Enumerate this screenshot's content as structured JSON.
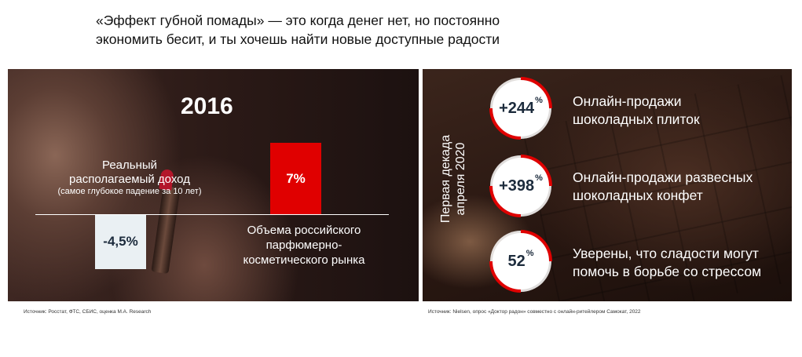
{
  "headline": {
    "line1": "«Эффект губной помады» — это когда денег нет, но постоянно",
    "line2": "экономить бесит, и ты хочешь найти новые доступные радости"
  },
  "chart_data": {
    "type": "bar",
    "title": "2016",
    "categories": [
      "Реальный располагаемый доход (самое глубокое падение за 10 лет)",
      "Объема российского парфюмерно-косметического рынка"
    ],
    "values": [
      -4.5,
      7
    ],
    "value_labels": [
      "-4,5%",
      "7%"
    ],
    "colors": [
      "#eaf0f3",
      "#e00000"
    ],
    "ylim": [
      -5,
      8
    ]
  },
  "left": {
    "year": "2016",
    "income_label_line1": "Реальный",
    "income_label_line2": "располагаемый доход",
    "income_note": "(самое глубокое падение за 10 лет)",
    "market_line1": "Объема российского",
    "market_line2": "парфюмерно-",
    "market_line3": "косметического рынка",
    "source": "Источник: Росстат, ФТС, СБИС, оценка M.A. Research"
  },
  "right": {
    "period_line1": "Первая декада",
    "period_line2": "апреля 2020",
    "stats": [
      {
        "prefix": "+",
        "value": "244",
        "unit": "%",
        "line1": "Онлайн-продажи",
        "line2": "шоколадных плиток"
      },
      {
        "prefix": "+",
        "value": "398",
        "unit": "%",
        "line1": "Онлайн-продажи развесных",
        "line2": "шоколадных конфет"
      },
      {
        "prefix": "",
        "value": "52",
        "unit": "%",
        "line1": "Уверены, что сладости могут",
        "line2": "помочь в борьбе со стрессом"
      }
    ],
    "accent_color": "#e00000",
    "source": "Источник: Nielsen, опрос «Доктор радон» совместно с онлайн-ритейлером Самокат, 2022"
  }
}
